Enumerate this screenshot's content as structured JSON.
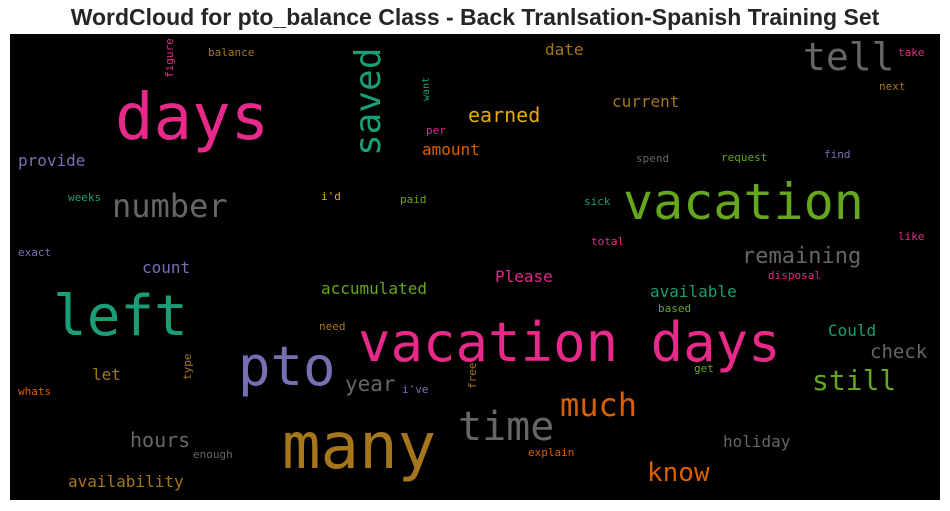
{
  "title": "WordCloud for pto_balance Class - Back Tranlsation-Spanish Training Set",
  "colors": {
    "pink": "#e7298a",
    "green": "#66a61e",
    "teal": "#1b9e77",
    "gold": "#a6761d",
    "orange": "#d95f02",
    "yellow": "#e6ab02",
    "purple": "#7570b3",
    "gray": "#666666"
  },
  "words": {
    "vacation_days": "vacation days",
    "many": "many",
    "days": "days",
    "left": "left",
    "vacation": "vacation",
    "pto": "pto",
    "time": "time",
    "tell": "tell",
    "saved": "saved",
    "number": "number",
    "much": "much",
    "still": "still",
    "know": "know",
    "remaining": "remaining",
    "earned": "earned",
    "year": "year",
    "hours": "hours",
    "check": "check",
    "current": "current",
    "date": "date",
    "amount": "amount",
    "provide": "provide",
    "count": "count",
    "accumulated": "accumulated",
    "please": "Please",
    "available": "available",
    "could": "Could",
    "let": "let",
    "holiday": "holiday",
    "availability": "availability",
    "figure": "figure",
    "balance": "balance",
    "want": "want",
    "per": "per",
    "take": "take",
    "next": "next",
    "spend": "spend",
    "request": "request",
    "find": "find",
    "weeks": "weeks",
    "id": "i'd",
    "paid": "paid",
    "sick": "sick",
    "total": "total",
    "like": "like",
    "exact": "exact",
    "disposal": "disposal",
    "need": "need",
    "based": "based",
    "type": "type",
    "free": "free",
    "get": "get",
    "whats": "whats",
    "ive": "i've",
    "enough": "enough",
    "explain": "explain"
  }
}
